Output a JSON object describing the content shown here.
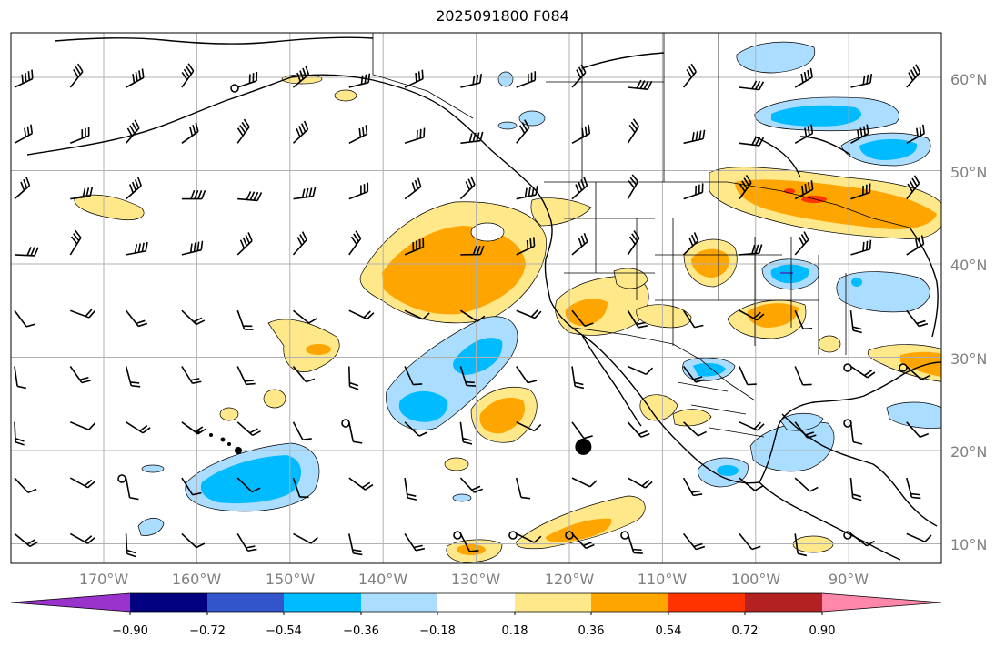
{
  "title": "2025091800 F084",
  "map": {
    "lat_labels": [
      "60°N",
      "50°N",
      "40°N",
      "30°N",
      "20°N",
      "10°N"
    ],
    "lon_labels": [
      "170°W",
      "160°W",
      "150°W",
      "140°W",
      "130°W",
      "120°W",
      "110°W",
      "100°W",
      "90°W"
    ],
    "marker": {
      "lon": -118.5,
      "lat": 20.4,
      "label": ""
    }
  },
  "colorbar": {
    "tick_labels": [
      "−0.90",
      "−0.72",
      "−0.54",
      "−0.36",
      "−0.18",
      "0.18",
      "0.36",
      "0.54",
      "0.72",
      "0.90"
    ],
    "colors": [
      "#9933cc",
      "#000080",
      "#3355cc",
      "#00bbff",
      "#aaddff",
      "#ffffff",
      "#ffe88a",
      "#ffa500",
      "#ff3300",
      "#b22222",
      "#ff88aa"
    ]
  }
}
